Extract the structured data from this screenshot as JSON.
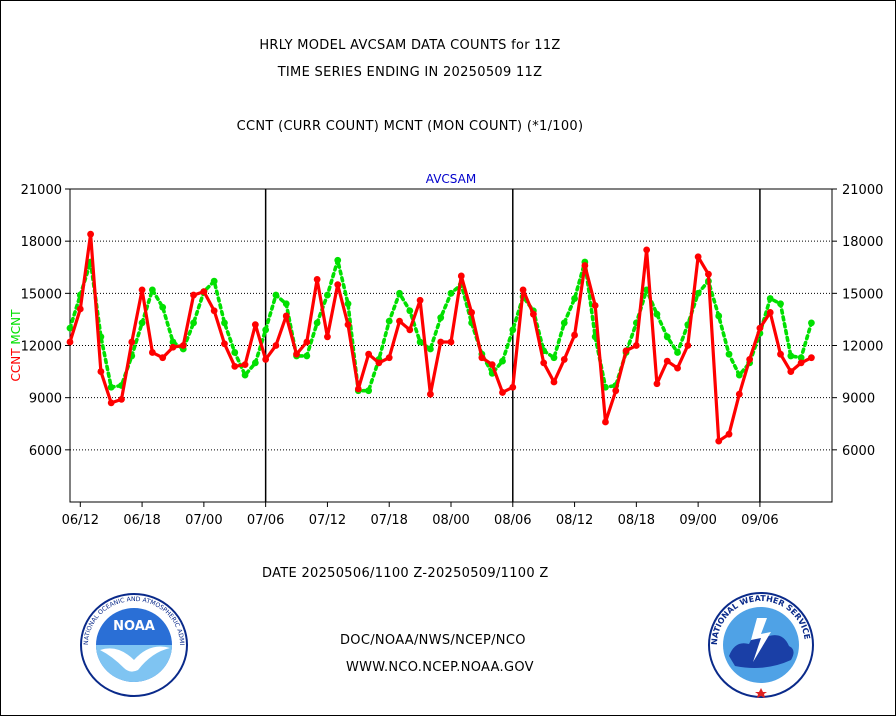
{
  "titles": {
    "line1": "HRLY MODEL AVCSAM DATA COUNTS for 11Z",
    "line2": "TIME SERIES ENDING IN 20250509 11Z",
    "line3": "CCNT (CURR COUNT) MCNT (MON COUNT) (*1/100)"
  },
  "footer": {
    "date_range": "DATE 20250506/1100 Z-20250509/1100 Z",
    "org": "DOC/NOAA/NWS/NCEP/NCO",
    "site": "WWW.NCO.NCEP.NOAA.GOV"
  },
  "logos": {
    "noaa_label": "NOAA",
    "noaa_ring": "NATIONAL OCEANIC AND ATMOSPHERIC ADMINISTRATION · U.S. DEPARTMENT OF COMMERCE",
    "nws_ring": "NATIONAL WEATHER SERVICE"
  },
  "colors": {
    "ccnt": "#ff0000",
    "mcnt": "#00e000",
    "title_blue": "#0000cc",
    "date_red": "#ff0000",
    "grid": "#000000"
  },
  "chart_data": {
    "type": "line",
    "title": "AVCSAM",
    "ylabel_parts": [
      {
        "text": "CCNT",
        "color": "#ff0000"
      },
      {
        "text": "MCNT",
        "color": "#00e000"
      }
    ],
    "ylim": [
      3000,
      21000
    ],
    "yticks": [
      6000,
      9000,
      12000,
      15000,
      18000,
      21000
    ],
    "xlim": [
      0,
      74
    ],
    "xticks": [
      {
        "x": 1,
        "label": "06/12"
      },
      {
        "x": 7,
        "label": "06/18"
      },
      {
        "x": 13,
        "label": "07/00"
      },
      {
        "x": 19,
        "label": "07/06"
      },
      {
        "x": 25,
        "label": "07/12"
      },
      {
        "x": 31,
        "label": "07/18"
      },
      {
        "x": 37,
        "label": "08/00"
      },
      {
        "x": 43,
        "label": "08/06"
      },
      {
        "x": 49,
        "label": "08/12"
      },
      {
        "x": 55,
        "label": "08/18"
      },
      {
        "x": 61,
        "label": "09/00"
      },
      {
        "x": 67,
        "label": "09/06"
      }
    ],
    "day_boundaries": [
      19,
      43,
      67
    ],
    "grid": true,
    "series": [
      {
        "name": "CCNT",
        "style": "solid",
        "values": [
          12200,
          14100,
          18400,
          10500,
          8700,
          8900,
          12200,
          15200,
          11600,
          11300,
          11900,
          12000,
          14900,
          15100,
          14000,
          12100,
          10800,
          10900,
          13200,
          11200,
          12000,
          13700,
          11500,
          12200,
          15800,
          12500,
          15500,
          13200,
          9500,
          11500,
          11000,
          11300,
          13400,
          12900,
          14600,
          9200,
          12200,
          12200,
          16000,
          13900,
          11300,
          10900,
          9300,
          9600,
          15200,
          13800,
          11000,
          9900,
          11200,
          12600,
          16600,
          14300,
          7600,
          9400,
          11700,
          12000,
          17500,
          9800,
          11100,
          10700,
          12000,
          17100,
          16100,
          6500,
          6900,
          9200,
          11200,
          13000,
          13900,
          11500,
          10500,
          11000,
          11300
        ]
      },
      {
        "name": "MCNT",
        "style": "dotted",
        "values": [
          13000,
          14900,
          16800,
          12500,
          9600,
          9700,
          11400,
          13300,
          15200,
          14200,
          12200,
          11800,
          13300,
          15100,
          15700,
          13300,
          11600,
          10300,
          11000,
          12900,
          14900,
          14400,
          11400,
          11400,
          13300,
          14900,
          16900,
          14400,
          9400,
          9400,
          11200,
          13400,
          15000,
          14000,
          12200,
          11800,
          13600,
          15000,
          15500,
          13300,
          11500,
          10400,
          11100,
          12900,
          14800,
          14000,
          11700,
          11300,
          13300,
          14700,
          16800,
          12500,
          9600,
          9700,
          11600,
          13300,
          15200,
          13800,
          12500,
          11600,
          13200,
          15000,
          15700,
          13700,
          11500,
          10300,
          11000,
          12700,
          14700,
          14400,
          11400,
          11300,
          13300
        ]
      }
    ]
  }
}
